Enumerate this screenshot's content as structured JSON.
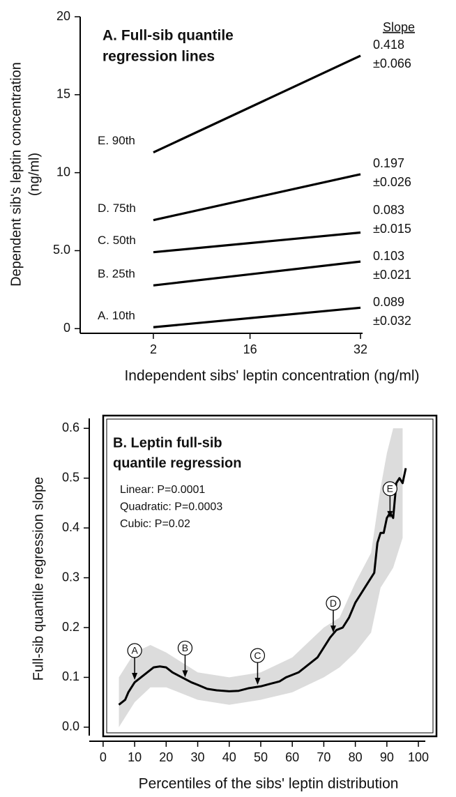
{
  "chart_data": [
    {
      "type": "line",
      "title": [
        "A. Full-sib quantile",
        "regression lines"
      ],
      "y_label": [
        "Dependent sib's leptin concentration",
        "(ng/ml)"
      ],
      "x_label": "Independent sibs' leptin concentration (ng/ml)",
      "slope_header": "Slope",
      "x": [
        2,
        32
      ],
      "xlim": [
        -8.6,
        32.3
      ],
      "xticks": [
        2,
        16,
        32
      ],
      "ylim": [
        -0.3,
        20
      ],
      "yticks": [
        0,
        {
          "value": 5,
          "label": "5.0"
        },
        10,
        15,
        20
      ],
      "series": [
        {
          "name": "A. 10th",
          "color": "#000000",
          "values": [
            0.09,
            1.34
          ],
          "slope_label": [
            "0.089",
            "±0.032"
          ]
        },
        {
          "name": "B. 25th",
          "color": "#000000",
          "values": [
            2.77,
            4.3
          ],
          "slope_label": [
            "0.103",
            "±0.021"
          ]
        },
        {
          "name": "C. 50th",
          "color": "#000000",
          "values": [
            4.9,
            6.16
          ],
          "slope_label": [
            "0.083",
            "±0.015"
          ]
        },
        {
          "name": "D. 75th",
          "color": "#000000",
          "values": [
            6.96,
            9.9
          ],
          "slope_label": [
            "0.197",
            "±0.026"
          ]
        },
        {
          "name": "E. 90th",
          "color": "#000000",
          "values": [
            11.3,
            17.5
          ],
          "slope_label": [
            "0.418",
            "±0.066"
          ]
        }
      ]
    },
    {
      "type": "line-band",
      "title": [
        "B. Leptin full-sib",
        "quantile regression"
      ],
      "notes": [
        "Linear: P=0.0001",
        "Quadratic: P=0.0003",
        "Cubic: P=0.02"
      ],
      "y_label": "Full-sib quantile regression slope",
      "x_label": "Percentiles of the sibs' leptin distribution",
      "xlim": [
        -4.4,
        102.2
      ],
      "xticks": [
        0,
        10,
        20,
        30,
        40,
        50,
        60,
        70,
        80,
        90,
        100
      ],
      "ylim": [
        -0.017,
        0.62
      ],
      "yticks": [
        {
          "value": 0,
          "label": "0.0"
        },
        0.1,
        0.2,
        0.3,
        0.4,
        0.5,
        0.6
      ],
      "x": [
        5,
        7,
        8,
        10,
        12,
        14,
        16,
        18,
        20,
        22,
        25,
        28,
        30,
        33,
        36,
        40,
        43,
        46,
        50,
        53,
        56,
        58,
        60,
        62,
        65,
        68,
        70,
        72,
        74,
        76,
        78,
        80,
        83,
        86,
        87,
        88,
        89,
        90,
        91,
        92,
        93,
        94,
        95,
        96
      ],
      "series": [
        {
          "color": "#000000",
          "values": [
            0.045,
            0.055,
            0.07,
            0.09,
            0.1,
            0.11,
            0.12,
            0.122,
            0.12,
            0.11,
            0.1,
            0.09,
            0.085,
            0.077,
            0.074,
            0.072,
            0.073,
            0.078,
            0.082,
            0.087,
            0.092,
            0.1,
            0.105,
            0.11,
            0.125,
            0.14,
            0.16,
            0.18,
            0.195,
            0.2,
            0.22,
            0.25,
            0.28,
            0.31,
            0.37,
            0.39,
            0.39,
            0.42,
            0.43,
            0.42,
            0.49,
            0.5,
            0.49,
            0.52
          ]
        }
      ],
      "band": {
        "color": "#dcdcdc",
        "x": [
          5,
          10,
          15,
          20,
          30,
          40,
          50,
          60,
          70,
          75,
          80,
          85,
          88,
          90,
          92,
          95
        ],
        "lower": [
          0.0,
          0.05,
          0.08,
          0.08,
          0.055,
          0.045,
          0.055,
          0.07,
          0.1,
          0.12,
          0.15,
          0.19,
          0.28,
          0.3,
          0.32,
          0.38
        ],
        "upper": [
          0.1,
          0.15,
          0.165,
          0.15,
          0.11,
          0.1,
          0.11,
          0.14,
          0.2,
          0.22,
          0.29,
          0.35,
          0.48,
          0.55,
          0.6,
          0.6
        ]
      },
      "markers": [
        {
          "label": "A",
          "x": 10,
          "y": 0.095
        },
        {
          "label": "B",
          "x": 26,
          "y": 0.1
        },
        {
          "label": "C",
          "x": 49,
          "y": 0.085
        },
        {
          "label": "D",
          "x": 73,
          "y": 0.19
        },
        {
          "label": "E",
          "x": 91,
          "y": 0.42
        }
      ]
    }
  ]
}
